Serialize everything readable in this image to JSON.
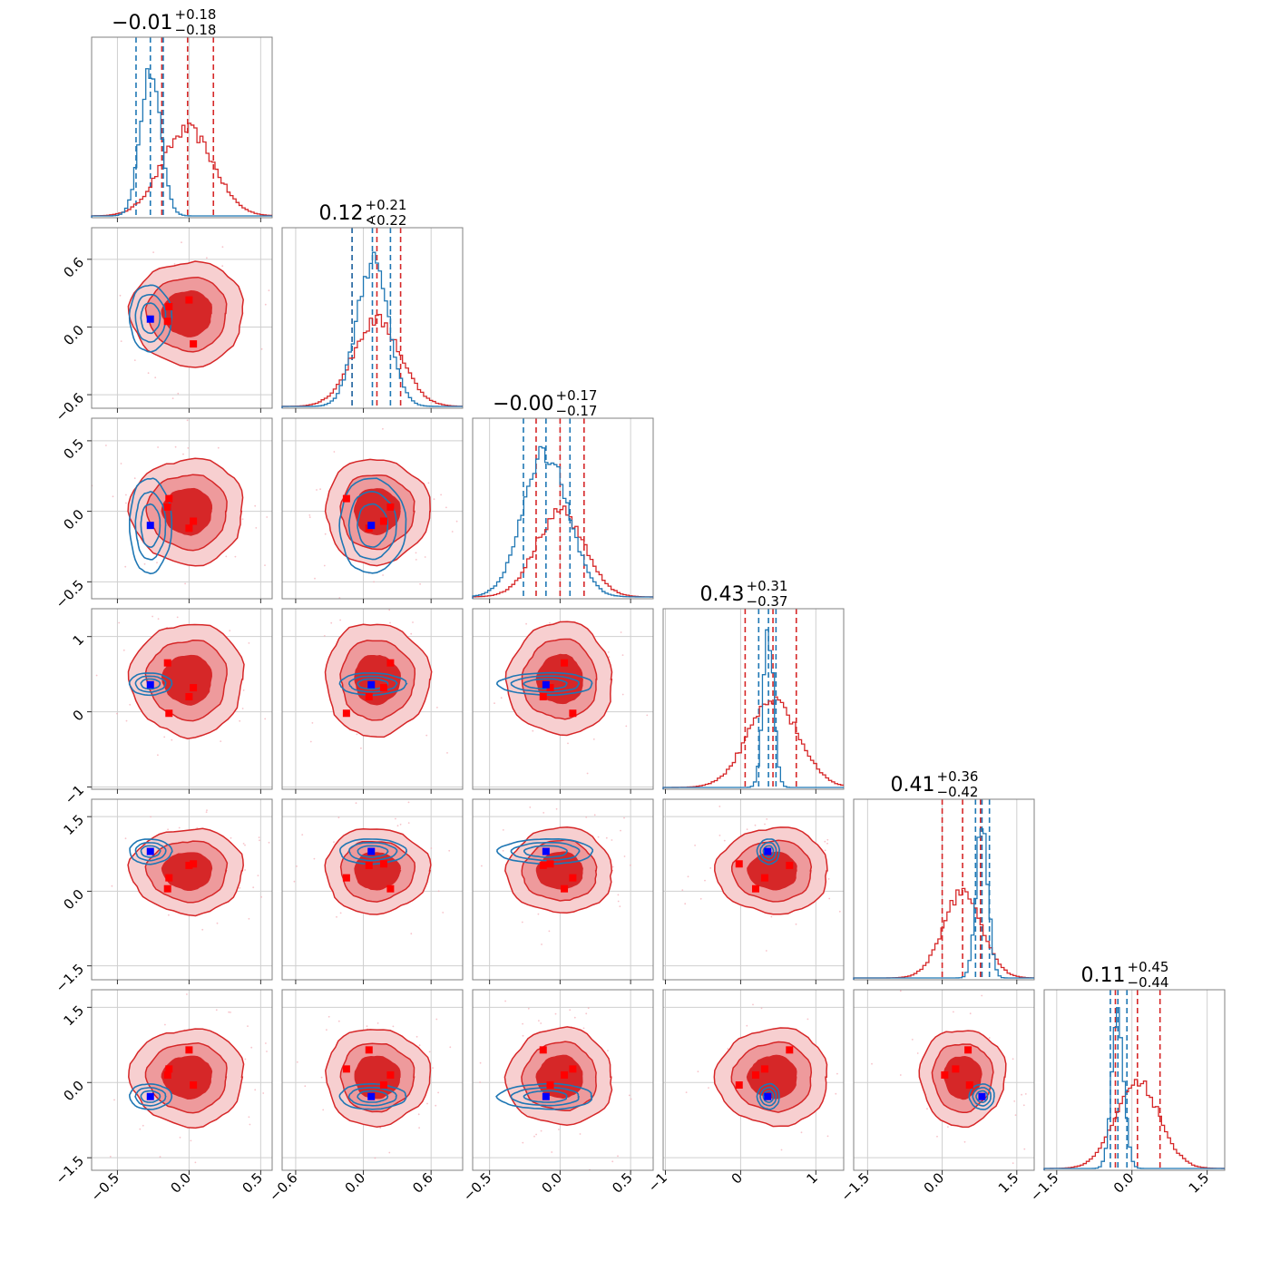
{
  "chart_data": {
    "type": "corner",
    "n_params": 6,
    "grid": true,
    "colors": {
      "red": "#d62728",
      "blue": "#1f77b4",
      "red_fill_mid": "#ee9a9c",
      "red_fill_light": "#f7cfd0",
      "marker_red": "#ff0000",
      "marker_blue": "#0000ff"
    },
    "params": [
      {
        "title_main": "−0.01",
        "title_sup": "+0.18",
        "title_sub": "−0.18",
        "range": [
          -0.68,
          0.58
        ],
        "ticks": [
          -0.5,
          0.0,
          0.5
        ],
        "tick_labels": [
          "−0.5",
          "0.0",
          "0.5"
        ],
        "red_hist": {
          "mean": -0.01,
          "sd": 0.18
        },
        "blue_hist": {
          "mean": -0.27,
          "sd": 0.07
        },
        "red_quantiles": [
          -0.19,
          -0.01,
          0.17
        ],
        "blue_quantiles": [
          -0.37,
          -0.27,
          -0.18
        ],
        "red_markers": [
          -0.15,
          -0.14,
          0.0,
          0.03
        ],
        "blue_marker": -0.27
      },
      {
        "title_main": "0.12",
        "title_sup": "+0.21",
        "title_sub": "∢0.22",
        "range": [
          -0.72,
          0.88
        ],
        "ticks": [
          -0.6,
          0.0,
          0.6
        ],
        "tick_labels": [
          "−0.6",
          "0.0",
          "0.6"
        ],
        "red_hist": {
          "mean": 0.12,
          "sd": 0.21
        },
        "blue_hist": {
          "mean": 0.08,
          "sd": 0.14
        },
        "red_quantiles": [
          -0.1,
          0.12,
          0.33
        ],
        "blue_quantiles": [
          -0.1,
          0.08,
          0.24
        ],
        "red_markers": [
          -0.15,
          0.05,
          0.18,
          0.24
        ],
        "blue_marker": 0.07
      },
      {
        "title_main": "−0.00",
        "title_sup": "+0.17",
        "title_sub": "−0.17",
        "range": [
          -0.62,
          0.66
        ],
        "ticks": [
          -0.5,
          0.0,
          0.5
        ],
        "tick_labels": [
          "−0.5",
          "0.0",
          "0.5"
        ],
        "red_hist": {
          "mean": 0.0,
          "sd": 0.17
        },
        "blue_hist": {
          "mean": -0.1,
          "sd": 0.16
        },
        "red_quantiles": [
          -0.17,
          0.0,
          0.17
        ],
        "blue_quantiles": [
          -0.26,
          -0.1,
          0.07
        ],
        "red_markers": [
          -0.12,
          -0.07,
          0.03,
          0.09
        ],
        "blue_marker": -0.1
      },
      {
        "title_main": "0.43",
        "title_sup": "+0.31",
        "title_sub": "−0.37",
        "range": [
          -1.03,
          1.37
        ],
        "ticks": [
          -1,
          0,
          1
        ],
        "tick_labels": [
          "−1",
          "0",
          "1"
        ],
        "red_hist": {
          "mean": 0.43,
          "sd": 0.34
        },
        "blue_hist": {
          "mean": 0.37,
          "sd": 0.07
        },
        "red_quantiles": [
          0.06,
          0.43,
          0.74
        ],
        "blue_quantiles": [
          0.24,
          0.37,
          0.47
        ],
        "red_markers": [
          -0.02,
          0.2,
          0.32,
          0.65
        ],
        "blue_marker": 0.36
      },
      {
        "title_main": "0.41",
        "title_sup": "+0.36",
        "title_sub": "−0.42",
        "range": [
          -1.78,
          1.85
        ],
        "ticks": [
          -1.5,
          0.0,
          1.5
        ],
        "tick_labels": [
          "−1.5",
          "0.0",
          "1.5"
        ],
        "red_hist": {
          "mean": 0.41,
          "sd": 0.39
        },
        "blue_hist": {
          "mean": 0.8,
          "sd": 0.12
        },
        "red_quantiles": [
          0.0,
          0.41,
          0.77
        ],
        "blue_quantiles": [
          0.67,
          0.8,
          0.95
        ],
        "red_markers": [
          0.05,
          0.27,
          0.52,
          0.55
        ],
        "blue_marker": 0.8
      },
      {
        "title_main": "0.11",
        "title_sup": "+0.45",
        "title_sub": "−0.44",
        "range": [
          -1.75,
          1.85
        ],
        "ticks": [
          -1.5,
          0.0,
          1.5
        ],
        "tick_labels": [
          "−1.5",
          "0.0",
          "1.5"
        ],
        "red_hist": {
          "mean": 0.11,
          "sd": 0.44
        },
        "blue_hist": {
          "mean": -0.28,
          "sd": 0.12
        },
        "red_quantiles": [
          -0.33,
          0.11,
          0.56
        ],
        "blue_quantiles": [
          -0.43,
          -0.28,
          -0.1
        ],
        "red_markers": [
          -0.05,
          0.15,
          0.27,
          0.65
        ],
        "blue_marker": -0.28
      }
    ]
  }
}
